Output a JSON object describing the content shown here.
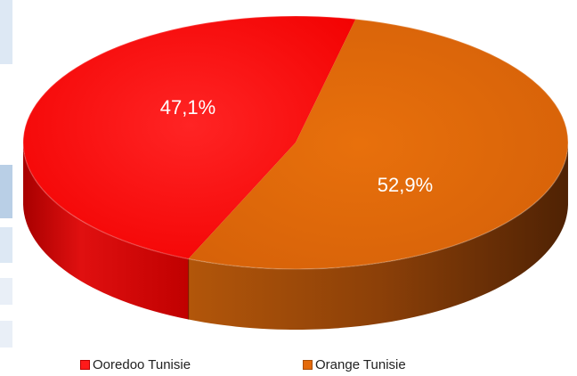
{
  "chart_data": {
    "type": "pie",
    "style": "3d",
    "categories": [
      "Ooredoo Tunisie",
      "Orange Tunisie"
    ],
    "values": [
      47.1,
      52.9
    ],
    "labels": [
      "47,1%",
      "52,9%"
    ],
    "colors": [
      "#ff1a1a",
      "#e46a0a"
    ],
    "legend": {
      "position": "bottom",
      "entries": [
        "Ooredoo Tunisie",
        "Orange Tunisie"
      ]
    }
  }
}
